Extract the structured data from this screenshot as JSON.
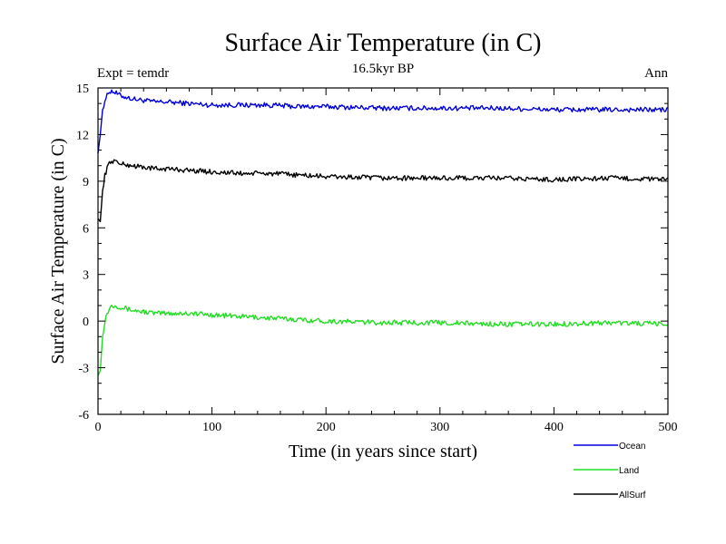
{
  "chart_data": {
    "type": "line",
    "title": "Surface Air Temperature (in C)",
    "subtitle": "16.5kyr BP",
    "left_annotation": "Expt = temdr",
    "right_annotation": "Ann",
    "xlabel": "Time (in years since start)",
    "ylabel": "Surface Air Temperature (in C)",
    "xlim": [
      0,
      500
    ],
    "ylim": [
      -6,
      15
    ],
    "xticks": [
      0,
      100,
      200,
      300,
      400,
      500
    ],
    "yticks": [
      -6,
      -3,
      0,
      3,
      6,
      9,
      12,
      15
    ],
    "legend_position": "bottom-right",
    "series": [
      {
        "name": "Ocean",
        "color": "#0000dd",
        "x": [
          0,
          2,
          4,
          6,
          8,
          10,
          12,
          15,
          20,
          30,
          40,
          50,
          60,
          80,
          100,
          125,
          150,
          175,
          200,
          250,
          300,
          350,
          400,
          450,
          500
        ],
        "y": [
          10.8,
          12.0,
          13.6,
          14.2,
          14.5,
          14.8,
          14.8,
          14.7,
          14.5,
          14.3,
          14.2,
          14.1,
          14.1,
          14.0,
          13.9,
          13.9,
          13.9,
          13.8,
          13.8,
          13.7,
          13.7,
          13.7,
          13.6,
          13.6,
          13.6
        ]
      },
      {
        "name": "Land",
        "color": "#22dd22",
        "x": [
          0,
          2,
          4,
          6,
          8,
          10,
          12,
          15,
          20,
          30,
          40,
          50,
          60,
          80,
          100,
          125,
          150,
          175,
          200,
          250,
          300,
          350,
          400,
          450,
          500
        ],
        "y": [
          -3.5,
          -3.2,
          -1.0,
          0.0,
          0.5,
          0.8,
          1.0,
          1.0,
          0.9,
          0.7,
          0.6,
          0.5,
          0.5,
          0.5,
          0.4,
          0.3,
          0.2,
          0.1,
          0.0,
          -0.1,
          -0.1,
          -0.2,
          -0.2,
          -0.1,
          -0.2
        ]
      },
      {
        "name": "AllSurf",
        "color": "#000000",
        "x": [
          0,
          2,
          4,
          6,
          8,
          10,
          12,
          15,
          20,
          30,
          40,
          50,
          60,
          80,
          100,
          125,
          150,
          175,
          200,
          250,
          300,
          350,
          400,
          450,
          500
        ],
        "y": [
          6.6,
          6.4,
          8.4,
          9.4,
          9.8,
          10.2,
          10.3,
          10.3,
          10.1,
          10.0,
          9.9,
          9.8,
          9.8,
          9.7,
          9.6,
          9.5,
          9.5,
          9.4,
          9.3,
          9.2,
          9.2,
          9.2,
          9.1,
          9.2,
          9.1
        ]
      }
    ]
  }
}
